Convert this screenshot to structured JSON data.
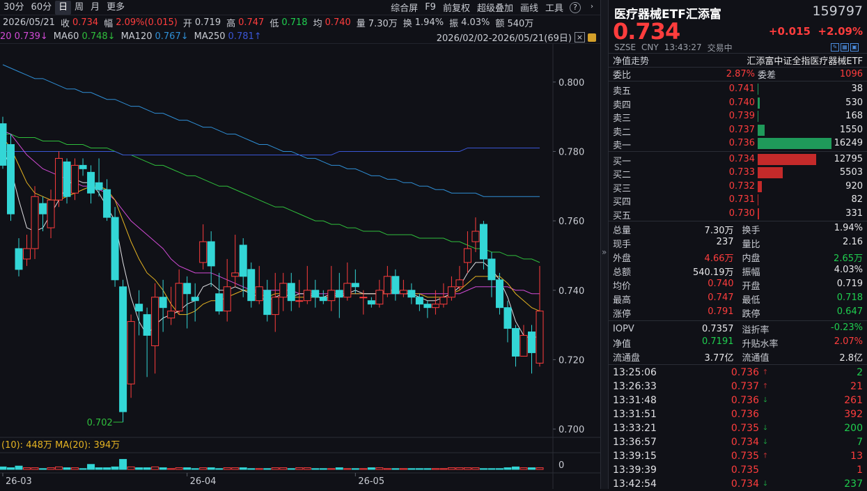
{
  "toolbar": {
    "periods": [
      "30分",
      "60分",
      "日",
      "周",
      "月",
      "更多"
    ],
    "active_period": "日",
    "tools": [
      "综合屏",
      "F9",
      "前复权",
      "超级叠加",
      "画线",
      "工具"
    ]
  },
  "info": {
    "date": "2026/05/21",
    "close_label": "收",
    "close": "0.734",
    "change_label": "幅",
    "change": "2.09%(0.015)",
    "open_label": "开",
    "open": "0.719",
    "high_label": "高",
    "high": "0.747",
    "low_label": "低",
    "low": "0.718",
    "avg_label": "均",
    "avg": "0.740",
    "vol_label": "量",
    "vol": "7.30万",
    "turn_label": "换",
    "turn": "1.94%",
    "amp_label": "振",
    "amp": "4.03%",
    "amt_label": "额",
    "amt": "540万"
  },
  "ma": {
    "ma20": "20 0.739↓",
    "ma60_label": "MA60",
    "ma60": "0.748↓",
    "ma120_label": "MA120",
    "ma120": "0.767↓",
    "ma250_label": "MA250",
    "ma250": "0.781↑",
    "range": "2026/02/02-2026/05/21(69日)"
  },
  "chart_data": {
    "type": "candlestick",
    "y_ticks": [
      "0.800",
      "0.780",
      "0.760",
      "0.740",
      "0.720",
      "0.700"
    ],
    "ylim": [
      0.697,
      0.811
    ],
    "x_ticks": [
      "26-03",
      "26-04",
      "26-05"
    ],
    "x_tick_index": [
      0,
      23,
      44
    ],
    "low_marker": "0.702",
    "low_marker_index": 15,
    "candles": [
      [
        0.788,
        0.776,
        0.79,
        0.775
      ],
      [
        0.782,
        0.762,
        0.785,
        0.76
      ],
      [
        0.752,
        0.746,
        0.755,
        0.744
      ],
      [
        0.749,
        0.752,
        0.756,
        0.747
      ],
      [
        0.752,
        0.767,
        0.77,
        0.749
      ],
      [
        0.765,
        0.762,
        0.767,
        0.757
      ],
      [
        0.758,
        0.766,
        0.769,
        0.755
      ],
      [
        0.766,
        0.778,
        0.78,
        0.764
      ],
      [
        0.777,
        0.767,
        0.778,
        0.765
      ],
      [
        0.768,
        0.776,
        0.778,
        0.766
      ],
      [
        0.776,
        0.775,
        0.778,
        0.773
      ],
      [
        0.774,
        0.768,
        0.776,
        0.765
      ],
      [
        0.771,
        0.769,
        0.778,
        0.767
      ],
      [
        0.769,
        0.761,
        0.772,
        0.76
      ],
      [
        0.761,
        0.743,
        0.764,
        0.741
      ],
      [
        0.741,
        0.705,
        0.743,
        0.702
      ],
      [
        0.713,
        0.731,
        0.733,
        0.709
      ],
      [
        0.736,
        0.734,
        0.74,
        0.727
      ],
      [
        0.733,
        0.727,
        0.735,
        0.715
      ],
      [
        0.724,
        0.738,
        0.742,
        0.716
      ],
      [
        0.738,
        0.735,
        0.743,
        0.728
      ],
      [
        0.732,
        0.734,
        0.741,
        0.73
      ],
      [
        0.734,
        0.742,
        0.746,
        0.733
      ],
      [
        0.742,
        0.739,
        0.744,
        0.729
      ],
      [
        0.738,
        0.737,
        0.742,
        0.731
      ],
      [
        0.748,
        0.754,
        0.759,
        0.746
      ],
      [
        0.754,
        0.747,
        0.757,
        0.741
      ],
      [
        0.739,
        0.734,
        0.745,
        0.733
      ],
      [
        0.734,
        0.741,
        0.749,
        0.731
      ],
      [
        0.744,
        0.745,
        0.756,
        0.741
      ],
      [
        0.753,
        0.744,
        0.755,
        0.738
      ],
      [
        0.746,
        0.737,
        0.748,
        0.735
      ],
      [
        0.737,
        0.741,
        0.747,
        0.736
      ],
      [
        0.74,
        0.733,
        0.743,
        0.731
      ],
      [
        0.733,
        0.738,
        0.745,
        0.728
      ],
      [
        0.738,
        0.742,
        0.745,
        0.734
      ],
      [
        0.742,
        0.737,
        0.745,
        0.734
      ],
      [
        0.737,
        0.737,
        0.743,
        0.735
      ],
      [
        0.737,
        0.74,
        0.747,
        0.736
      ],
      [
        0.74,
        0.738,
        0.743,
        0.735
      ],
      [
        0.738,
        0.737,
        0.74,
        0.736
      ],
      [
        0.737,
        0.74,
        0.747,
        0.734
      ],
      [
        0.74,
        0.738,
        0.745,
        0.732
      ],
      [
        0.738,
        0.742,
        0.748,
        0.737
      ],
      [
        0.742,
        0.741,
        0.746,
        0.739
      ],
      [
        0.738,
        0.738,
        0.74,
        0.733
      ],
      [
        0.737,
        0.736,
        0.738,
        0.735
      ],
      [
        0.736,
        0.74,
        0.743,
        0.735
      ],
      [
        0.739,
        0.744,
        0.747,
        0.738
      ],
      [
        0.744,
        0.739,
        0.746,
        0.737
      ],
      [
        0.739,
        0.74,
        0.743,
        0.738
      ],
      [
        0.74,
        0.738,
        0.742,
        0.736
      ],
      [
        0.738,
        0.736,
        0.739,
        0.734
      ],
      [
        0.736,
        0.735,
        0.737,
        0.732
      ],
      [
        0.735,
        0.736,
        0.74,
        0.733
      ],
      [
        0.736,
        0.738,
        0.742,
        0.735
      ],
      [
        0.738,
        0.741,
        0.744,
        0.737
      ],
      [
        0.741,
        0.743,
        0.747,
        0.74
      ],
      [
        0.748,
        0.752,
        0.757,
        0.745
      ],
      [
        0.754,
        0.757,
        0.761,
        0.751
      ],
      [
        0.759,
        0.749,
        0.76,
        0.746
      ],
      [
        0.749,
        0.743,
        0.751,
        0.738
      ],
      [
        0.743,
        0.735,
        0.745,
        0.733
      ],
      [
        0.735,
        0.729,
        0.737,
        0.725
      ],
      [
        0.729,
        0.721,
        0.73,
        0.718
      ],
      [
        0.721,
        0.727,
        0.73,
        0.721
      ],
      [
        0.728,
        0.722,
        0.73,
        0.716
      ],
      [
        0.719,
        0.734,
        0.747,
        0.718
      ]
    ],
    "ma5": [
      0.781,
      0.775,
      0.766,
      0.758,
      0.757,
      0.758,
      0.762,
      0.766,
      0.77,
      0.772,
      0.771,
      0.771,
      0.768,
      0.764,
      0.76,
      0.748,
      0.738,
      0.731,
      0.727,
      0.73,
      0.732,
      0.733,
      0.734,
      0.736,
      0.737,
      0.741,
      0.742,
      0.74,
      0.74,
      0.741,
      0.74,
      0.739,
      0.738,
      0.737,
      0.738,
      0.739,
      0.738,
      0.739,
      0.739,
      0.738,
      0.738,
      0.739,
      0.738,
      0.739,
      0.74,
      0.739,
      0.739,
      0.739,
      0.74,
      0.74,
      0.739,
      0.739,
      0.738,
      0.737,
      0.737,
      0.738,
      0.739,
      0.741,
      0.745,
      0.748,
      0.748,
      0.746,
      0.743,
      0.738,
      0.731,
      0.727,
      0.726,
      0.727
    ],
    "ma10": [
      0.784,
      0.781,
      0.776,
      0.771,
      0.768,
      0.767,
      0.766,
      0.766,
      0.767,
      0.768,
      0.769,
      0.77,
      0.77,
      0.769,
      0.766,
      0.76,
      0.754,
      0.749,
      0.745,
      0.743,
      0.74,
      0.736,
      0.733,
      0.733,
      0.734,
      0.736,
      0.737,
      0.737,
      0.738,
      0.739,
      0.74,
      0.74,
      0.739,
      0.738,
      0.739,
      0.739,
      0.738,
      0.738,
      0.738,
      0.738,
      0.738,
      0.738,
      0.738,
      0.739,
      0.739,
      0.739,
      0.739,
      0.739,
      0.739,
      0.74,
      0.739,
      0.739,
      0.739,
      0.738,
      0.738,
      0.738,
      0.739,
      0.74,
      0.742,
      0.744,
      0.744,
      0.744,
      0.744,
      0.742,
      0.739,
      0.737,
      0.735,
      0.734
    ],
    "ma20": [
      0.786,
      0.785,
      0.782,
      0.779,
      0.777,
      0.775,
      0.774,
      0.773,
      0.772,
      0.771,
      0.77,
      0.77,
      0.769,
      0.768,
      0.766,
      0.763,
      0.76,
      0.758,
      0.756,
      0.754,
      0.752,
      0.749,
      0.747,
      0.746,
      0.745,
      0.745,
      0.745,
      0.744,
      0.743,
      0.742,
      0.741,
      0.74,
      0.74,
      0.74,
      0.74,
      0.74,
      0.74,
      0.739,
      0.739,
      0.739,
      0.739,
      0.739,
      0.739,
      0.739,
      0.739,
      0.739,
      0.739,
      0.739,
      0.739,
      0.739,
      0.739,
      0.739,
      0.739,
      0.739,
      0.739,
      0.739,
      0.739,
      0.739,
      0.74,
      0.741,
      0.741,
      0.741,
      0.741,
      0.741,
      0.74,
      0.74,
      0.739,
      0.739
    ],
    "ma60": [
      0.785,
      0.785,
      0.784,
      0.784,
      0.784,
      0.783,
      0.783,
      0.783,
      0.782,
      0.782,
      0.782,
      0.781,
      0.781,
      0.781,
      0.78,
      0.779,
      0.779,
      0.778,
      0.777,
      0.776,
      0.776,
      0.775,
      0.774,
      0.773,
      0.773,
      0.772,
      0.771,
      0.77,
      0.77,
      0.769,
      0.768,
      0.767,
      0.766,
      0.765,
      0.764,
      0.764,
      0.763,
      0.762,
      0.761,
      0.76,
      0.76,
      0.759,
      0.759,
      0.758,
      0.758,
      0.757,
      0.757,
      0.757,
      0.756,
      0.756,
      0.756,
      0.756,
      0.755,
      0.755,
      0.755,
      0.755,
      0.754,
      0.754,
      0.753,
      0.752,
      0.752,
      0.751,
      0.751,
      0.75,
      0.75,
      0.749,
      0.749,
      0.748
    ],
    "ma120": [
      0.805,
      0.804,
      0.803,
      0.802,
      0.801,
      0.801,
      0.8,
      0.799,
      0.798,
      0.798,
      0.797,
      0.797,
      0.796,
      0.795,
      0.795,
      0.794,
      0.793,
      0.793,
      0.792,
      0.791,
      0.791,
      0.79,
      0.789,
      0.789,
      0.788,
      0.787,
      0.787,
      0.786,
      0.785,
      0.785,
      0.784,
      0.783,
      0.782,
      0.782,
      0.781,
      0.78,
      0.78,
      0.779,
      0.778,
      0.778,
      0.777,
      0.776,
      0.776,
      0.775,
      0.775,
      0.774,
      0.773,
      0.773,
      0.772,
      0.772,
      0.771,
      0.771,
      0.77,
      0.77,
      0.769,
      0.769,
      0.768,
      0.768,
      0.768,
      0.768,
      0.767,
      0.767,
      0.767,
      0.767,
      0.767,
      0.767,
      0.767,
      0.767
    ],
    "ma250": [
      0.78,
      0.78,
      0.78,
      0.78,
      0.78,
      0.78,
      0.78,
      0.78,
      0.78,
      0.78,
      0.78,
      0.78,
      0.78,
      0.78,
      0.78,
      0.779,
      0.779,
      0.779,
      0.779,
      0.779,
      0.779,
      0.779,
      0.779,
      0.779,
      0.779,
      0.779,
      0.779,
      0.779,
      0.779,
      0.779,
      0.779,
      0.779,
      0.779,
      0.779,
      0.779,
      0.779,
      0.779,
      0.779,
      0.779,
      0.779,
      0.779,
      0.779,
      0.78,
      0.78,
      0.78,
      0.78,
      0.78,
      0.78,
      0.78,
      0.78,
      0.78,
      0.78,
      0.78,
      0.78,
      0.78,
      0.78,
      0.78,
      0.78,
      0.781,
      0.781,
      0.781,
      0.781,
      0.781,
      0.781,
      0.781,
      0.781,
      0.781,
      0.781
    ],
    "volume": [
      0.3,
      0.2,
      0.4,
      0.2,
      0.2,
      0.1,
      0.2,
      0.3,
      0.2,
      0.2,
      0.1,
      0.6,
      0.2,
      0.2,
      0.3,
      1.2,
      0.3,
      0.2,
      0.2,
      0.3,
      0.2,
      0.1,
      0.2,
      0.2,
      0.1,
      0.2,
      0.2,
      0.1,
      0.2,
      0.2,
      0.2,
      0.1,
      0.1,
      0.1,
      0.2,
      0.2,
      0.1,
      0.2,
      0.2,
      0.1,
      0.1,
      0.1,
      0.2,
      0.1,
      0.1,
      0.1,
      0.2,
      0.2,
      0.1,
      0.1,
      0.1,
      0.1,
      0.1,
      0.1,
      0.1,
      0.1,
      0.2,
      0.2,
      0.2,
      0.2,
      0.1,
      0.1,
      0.1,
      0.2,
      0.3,
      0.2,
      0.2,
      0.2
    ],
    "volume_ma_labels": "(10): 448万  MA(20): 394万",
    "volume_axis_label": "0",
    "colors": {
      "up": "#ff3d3d",
      "down": "#33d6d6",
      "ma5": "#e0e0e4",
      "ma10": "#e6b422",
      "ma20": "#d24bd6",
      "ma60": "#2fbf3c",
      "ma120": "#2f8fd6",
      "ma250": "#3a56d6"
    }
  },
  "quote": {
    "name": "医疗器械ETF汇添富",
    "code": "159797",
    "price": "0.734",
    "chg": "+0.015",
    "pct": "+2.09%",
    "market": "SZSE",
    "currency": "CNY",
    "time": "13:43:27",
    "status": "交易中"
  },
  "nav": {
    "label": "净值走势",
    "value": "汇添富中证全指医疗器械ETF"
  },
  "wb": {
    "ratio_label": "委比",
    "ratio": "2.87%",
    "diff_label": "委差",
    "diff": "1096"
  },
  "asks": [
    {
      "label": "卖五",
      "price": "0.741",
      "vol": "38",
      "w": 0.3
    },
    {
      "label": "卖四",
      "price": "0.740",
      "vol": "530",
      "w": 3
    },
    {
      "label": "卖三",
      "price": "0.739",
      "vol": "168",
      "w": 1
    },
    {
      "label": "卖二",
      "price": "0.737",
      "vol": "1550",
      "w": 9.5
    },
    {
      "label": "卖一",
      "price": "0.736",
      "vol": "16249",
      "w": 106
    }
  ],
  "bids": [
    {
      "label": "买一",
      "price": "0.734",
      "vol": "12795",
      "w": 84
    },
    {
      "label": "买二",
      "price": "0.733",
      "vol": "5503",
      "w": 36
    },
    {
      "label": "买三",
      "price": "0.732",
      "vol": "920",
      "w": 6
    },
    {
      "label": "买四",
      "price": "0.731",
      "vol": "82",
      "w": 0.7
    },
    {
      "label": "买五",
      "price": "0.730",
      "vol": "331",
      "w": 2
    }
  ],
  "stats": [
    [
      {
        "k": "总量",
        "v": "7.30万",
        "c": "white"
      },
      {
        "k": "换手",
        "v": "1.94%",
        "c": "white"
      }
    ],
    [
      {
        "k": "现手",
        "v": "237",
        "c": "white"
      },
      {
        "k": "量比",
        "v": "2.16",
        "c": "white"
      }
    ],
    [
      {
        "k": "外盘",
        "v": "4.66万",
        "c": "red"
      },
      {
        "k": "内盘",
        "v": "2.65万",
        "c": "green"
      }
    ],
    [
      {
        "k": "总额",
        "v": "540.19万",
        "c": "white"
      },
      {
        "k": "振幅",
        "v": "4.03%",
        "c": "white"
      }
    ],
    [
      {
        "k": "均价",
        "v": "0.740",
        "c": "red"
      },
      {
        "k": "开盘",
        "v": "0.719",
        "c": "white"
      }
    ],
    [
      {
        "k": "最高",
        "v": "0.747",
        "c": "red"
      },
      {
        "k": "最低",
        "v": "0.718",
        "c": "green"
      }
    ],
    [
      {
        "k": "涨停",
        "v": "0.791",
        "c": "red"
      },
      {
        "k": "跌停",
        "v": "0.647",
        "c": "green"
      }
    ]
  ],
  "stats2": [
    [
      {
        "k": "IOPV",
        "v": "0.7357",
        "c": "white"
      },
      {
        "k": "溢折率",
        "v": "-0.23%",
        "c": "green"
      }
    ],
    [
      {
        "k": "净值",
        "v": "0.7191",
        "c": "green"
      },
      {
        "k": "升贴水率",
        "v": "2.07%",
        "c": "red"
      }
    ],
    [
      {
        "k": "流通盘",
        "v": "3.77亿",
        "c": "white"
      },
      {
        "k": "流通值",
        "v": "2.8亿",
        "c": "white"
      }
    ]
  ],
  "ticks": [
    {
      "t": "13:25:06",
      "p": "0.736",
      "a": "up",
      "v": "2",
      "vc": "green"
    },
    {
      "t": "13:26:33",
      "p": "0.737",
      "a": "up",
      "v": "21",
      "vc": "red"
    },
    {
      "t": "13:31:48",
      "p": "0.736",
      "a": "down",
      "v": "261",
      "vc": "red"
    },
    {
      "t": "13:31:51",
      "p": "0.736",
      "a": "",
      "v": "392",
      "vc": "red"
    },
    {
      "t": "13:33:21",
      "p": "0.735",
      "a": "down",
      "v": "200",
      "vc": "green"
    },
    {
      "t": "13:36:57",
      "p": "0.734",
      "a": "down",
      "v": "7",
      "vc": "green"
    },
    {
      "t": "13:39:15",
      "p": "0.735",
      "a": "up",
      "v": "13",
      "vc": "red"
    },
    {
      "t": "13:39:39",
      "p": "0.735",
      "a": "",
      "v": "1",
      "vc": "red"
    },
    {
      "t": "13:42:54",
      "p": "0.734",
      "a": "down",
      "v": "237",
      "vc": "green"
    }
  ]
}
